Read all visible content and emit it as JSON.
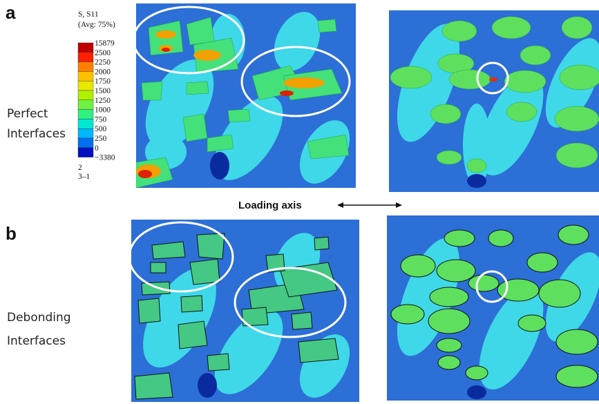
{
  "panel_a": {
    "tag": "a",
    "row_label": [
      "Perfect",
      "Interfaces"
    ]
  },
  "panel_b": {
    "tag": "b",
    "row_label": [
      "Debonding",
      "Interfaces"
    ]
  },
  "loading_axis": "Loading axis",
  "legend": {
    "title": "S, S11",
    "subtitle": "(Avg: 75%)",
    "levels": [
      "15879",
      "2500",
      "2250",
      "2000",
      "1750",
      "1500",
      "1250",
      "1000",
      "750",
      "500",
      "250",
      "0",
      "−3380"
    ],
    "triad": [
      "2",
      "3–1"
    ]
  }
}
